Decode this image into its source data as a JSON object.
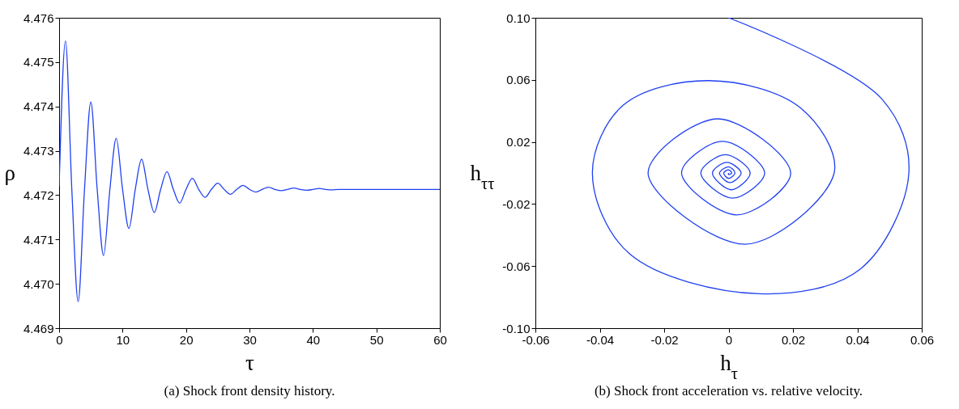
{
  "chart_data": [
    {
      "type": "line",
      "xlabel": "τ",
      "ylabel": "ρ",
      "annotations": [
        "(a) Shock front density history."
      ],
      "x": [
        0,
        1,
        2,
        3,
        4,
        5,
        6,
        7,
        8,
        9,
        10,
        11,
        12,
        13,
        14,
        15,
        16,
        17,
        18,
        19,
        20,
        21,
        22,
        23,
        24,
        25,
        26,
        27,
        28,
        29,
        30,
        31,
        32,
        33,
        34,
        35,
        36,
        37,
        38,
        39,
        40,
        41,
        42,
        43,
        44,
        45,
        46,
        48,
        50,
        52,
        54,
        56,
        58,
        60
      ],
      "series": [
        {
          "color": "#2040f0",
          "values": [
            4.4722,
            4.47548,
            4.47213,
            4.4696,
            4.47213,
            4.4741,
            4.47213,
            4.47064,
            4.47213,
            4.47328,
            4.47213,
            4.47125,
            4.47213,
            4.47281,
            4.47213,
            4.47161,
            4.47213,
            4.47253,
            4.47213,
            4.47182,
            4.47213,
            4.47238,
            4.47213,
            4.47195,
            4.47213,
            4.47227,
            4.47213,
            4.47202,
            4.47213,
            4.47222,
            4.47213,
            4.47207,
            4.47213,
            4.47218,
            4.47213,
            4.4721,
            4.47213,
            4.47216,
            4.47213,
            4.47211,
            4.47213,
            4.47215,
            4.47213,
            4.47212,
            4.47213,
            4.47213,
            4.47213,
            4.47213,
            4.47213,
            4.47213,
            4.47213,
            4.47213,
            4.47213,
            4.47213
          ]
        }
      ],
      "xlim": [
        0,
        60
      ],
      "xticks": [
        0,
        10,
        20,
        30,
        40,
        50,
        60
      ],
      "ylim": [
        4.469,
        4.476
      ],
      "yticks": [
        4.469,
        {
          "value": 4.47,
          "label": "4.470"
        },
        4.471,
        4.472,
        4.473,
        4.474,
        4.475,
        4.476
      ],
      "grid": false,
      "marker": "none",
      "line_style": "solid"
    },
    {
      "type": "line",
      "xlabel": "h$_{τ}$",
      "ylabel": "h$_{ττ}$",
      "annotations": [
        "(b) Shock front acceleration vs. relative velocity."
      ],
      "x": [
        0,
        0.0476,
        0.056,
        0.0408,
        0.0094,
        -0.0308,
        -0.0423,
        -0.0327,
        -0.0061,
        0.0225,
        0.0328,
        0.0052,
        -0.025,
        -0.0035,
        0.0193,
        0.0026,
        -0.0146,
        -0.0019,
        0.0112,
        0.0012,
        -0.0086,
        -0.001,
        0.0067,
        0.0008,
        -0.005,
        -0.0005,
        0.0039,
        0.0004,
        -0.0028,
        0,
        0.002,
        0,
        -0.0015,
        0,
        0.001,
        0,
        0
      ],
      "series": [
        {
          "color": "#2040f0",
          "values": [
            0.1,
            0.0477,
            0,
            -0.0621,
            -0.0778,
            -0.052,
            0,
            0.0437,
            0.0595,
            0.0417,
            0,
            -0.0459,
            0,
            0.0349,
            0,
            -0.027,
            0,
            0.0204,
            0,
            -0.0162,
            0,
            0.0118,
            0,
            -0.0108,
            0,
            0.0068,
            0,
            -0.0062,
            0,
            0.004,
            0,
            -0.0035,
            0,
            0.002,
            0,
            -0.001,
            0
          ]
        }
      ],
      "xlim": [
        -0.06,
        0.06
      ],
      "xticks": [
        -0.06,
        -0.04,
        -0.02,
        0,
        0.02,
        0.04,
        0.06
      ],
      "ylim": [
        -0.1,
        0.1
      ],
      "yticks": [
        {
          "value": -0.1,
          "label": "-0.10"
        },
        -0.06,
        -0.02,
        0.02,
        0.06,
        {
          "value": 0.1,
          "label": "0.10"
        }
      ],
      "grid": false,
      "marker": "none",
      "line_style": "solid"
    }
  ]
}
